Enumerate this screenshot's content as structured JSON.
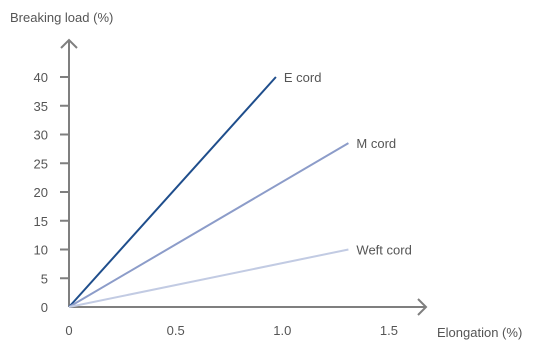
{
  "chart_data": {
    "type": "line",
    "ylabel": "Breaking load (%)",
    "xlabel": "Elongation (%)",
    "xlim": [
      0,
      1.5
    ],
    "ylim": [
      0,
      40
    ],
    "x_ticks": [
      "0",
      "0.5",
      "1.0",
      "1.5"
    ],
    "x_tick_values": [
      0,
      0.5,
      1.0,
      1.5
    ],
    "y_ticks": [
      "0",
      "5",
      "10",
      "15",
      "20",
      "25",
      "30",
      "35",
      "40"
    ],
    "y_tick_values": [
      0,
      5,
      10,
      15,
      20,
      25,
      30,
      35,
      40
    ],
    "grid": false,
    "legend": "none",
    "series": [
      {
        "name": "E cord",
        "color": "#1f4e8c",
        "points": [
          [
            0,
            0
          ],
          [
            0.97,
            40
          ]
        ]
      },
      {
        "name": "M cord",
        "color": "#8c9cc9",
        "points": [
          [
            0,
            0
          ],
          [
            1.31,
            28.5
          ]
        ]
      },
      {
        "name": "Weft cord",
        "color": "#c2cbe3",
        "points": [
          [
            0,
            0
          ],
          [
            1.31,
            10
          ]
        ]
      }
    ]
  }
}
